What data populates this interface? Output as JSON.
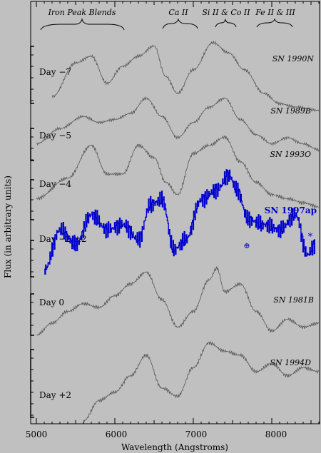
{
  "chart_data": {
    "type": "line",
    "title": "",
    "xlabel": "Wavelength (Angstroms)",
    "ylabel": "Flux (in arbitrary units)",
    "xlim": [
      5000,
      8600
    ],
    "x_ticks": [
      "5000",
      "6000",
      "7000",
      "8000"
    ],
    "grid": false,
    "top_annotations": [
      "Iron Peak Blends",
      "Ca II",
      "Si II & Co II",
      "Fe II & III"
    ],
    "day_labels": [
      "Day −7",
      "Day −5",
      "Day −4",
      "Day −2 ±2",
      "Day 0",
      "Day +2"
    ],
    "markers": [
      "⊕",
      "*"
    ],
    "series": [
      {
        "name": "SN 1990N",
        "color": "#555555",
        "x": [
          5200,
          5500,
          5700,
          5900,
          6100,
          6300,
          6500,
          6650,
          6800,
          7000,
          7250,
          7450,
          7650,
          7900,
          8100,
          8300,
          8600
        ],
        "y": [
          0.15,
          0.65,
          0.75,
          0.35,
          0.6,
          0.75,
          0.9,
          0.45,
          0.2,
          0.55,
          0.95,
          0.8,
          0.55,
          0.2,
          0.05,
          0.0,
          -0.05
        ]
      },
      {
        "name": "SN 1989B",
        "color": "#555555",
        "x": [
          5000,
          5300,
          5600,
          5800,
          6000,
          6200,
          6400,
          6600,
          6800,
          7000,
          7200,
          7400,
          7600,
          7800,
          8000,
          8200,
          8400,
          8600
        ],
        "y": [
          0.1,
          0.35,
          0.55,
          0.45,
          0.5,
          0.6,
          0.85,
          0.55,
          0.2,
          0.45,
          0.7,
          0.85,
          0.5,
          0.25,
          0.1,
          0.2,
          0.1,
          0.0
        ]
      },
      {
        "name": "SN 1993O",
        "color": "#555555",
        "x": [
          5000,
          5400,
          5700,
          5900,
          6100,
          6300,
          6500,
          6650,
          6800,
          7000,
          7200,
          7400,
          7600,
          7800,
          8000,
          8200,
          8400,
          8600
        ],
        "y": [
          0.1,
          0.35,
          0.75,
          0.4,
          0.4,
          0.75,
          0.6,
          0.3,
          0.15,
          0.65,
          0.75,
          0.85,
          0.55,
          0.3,
          0.15,
          0.1,
          0.05,
          0.0
        ]
      },
      {
        "name": "SN 1997ap",
        "color": "#0000cc",
        "x": [
          5100,
          5300,
          5500,
          5700,
          5900,
          6100,
          6300,
          6450,
          6600,
          6750,
          6900,
          7100,
          7300,
          7450,
          7550,
          7700,
          7900,
          8100,
          8300,
          8450,
          8550
        ],
        "y": [
          0.05,
          0.45,
          0.3,
          0.6,
          0.45,
          0.5,
          0.35,
          0.7,
          0.75,
          0.25,
          0.35,
          0.75,
          0.85,
          1.0,
          0.85,
          0.55,
          0.5,
          0.45,
          0.6,
          0.2,
          0.3
        ]
      },
      {
        "name": "SN 1981B",
        "color": "#555555",
        "x": [
          5000,
          5200,
          5400,
          5600,
          5800,
          6000,
          6200,
          6400,
          6600,
          6800,
          7000,
          7200,
          7300,
          7400,
          7600,
          7800,
          8000,
          8200,
          8400,
          8600
        ],
        "y": [
          0.05,
          0.2,
          0.35,
          0.45,
          0.4,
          0.55,
          0.7,
          0.85,
          0.5,
          0.15,
          0.35,
          0.75,
          0.9,
          0.6,
          0.7,
          0.35,
          0.1,
          0.25,
          0.15,
          0.2
        ]
      },
      {
        "name": "SN 1994D",
        "color": "#555555",
        "x": [
          5600,
          5800,
          6000,
          6200,
          6400,
          6600,
          6800,
          7000,
          7200,
          7400,
          7600,
          7800,
          8000,
          8200,
          8400,
          8600
        ],
        "y": [
          0.0,
          0.25,
          0.35,
          0.55,
          0.8,
          0.4,
          0.3,
          0.65,
          0.95,
          0.85,
          0.8,
          0.6,
          0.7,
          0.55,
          0.65,
          0.6
        ]
      }
    ]
  }
}
